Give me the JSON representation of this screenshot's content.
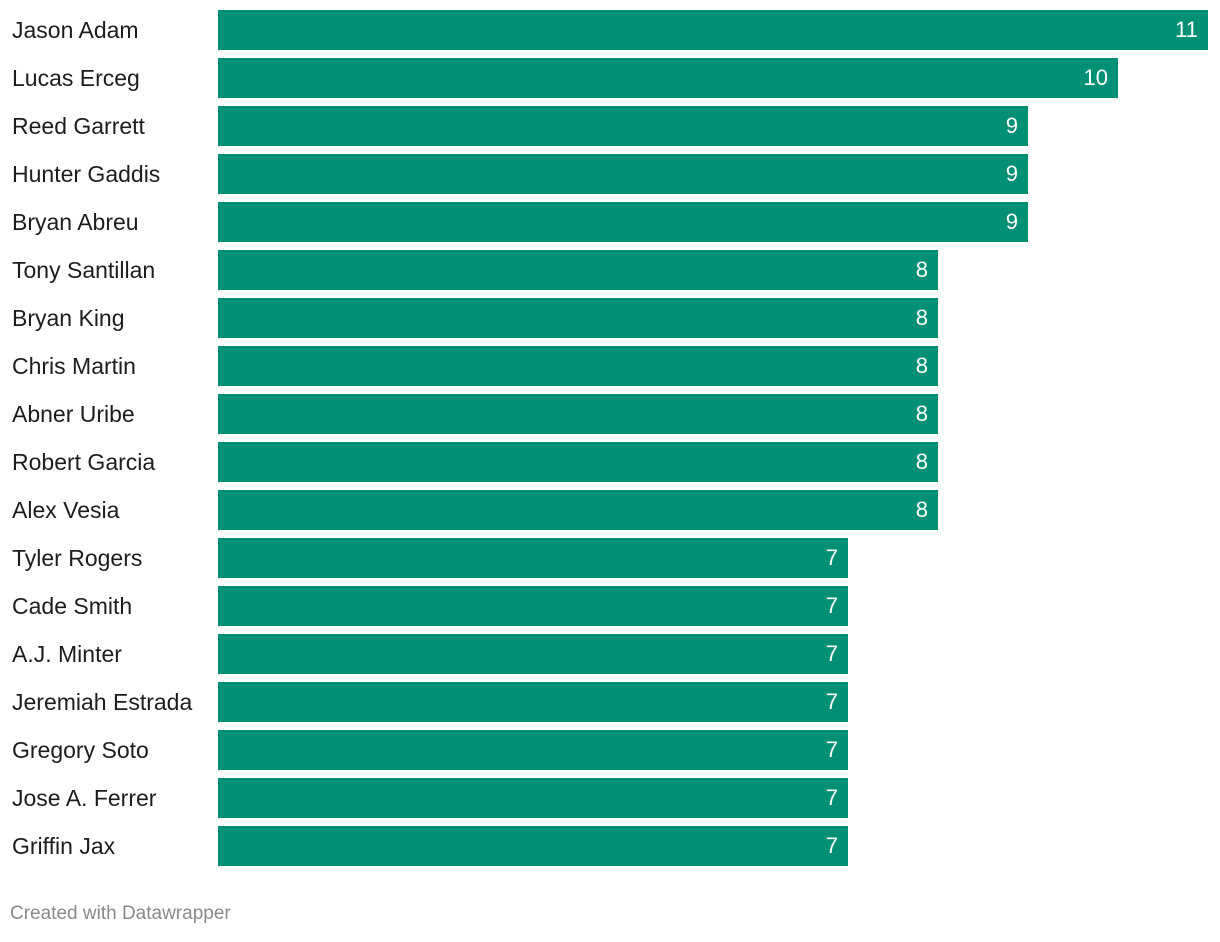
{
  "colors": {
    "bar": "#009076"
  },
  "chart_data": {
    "type": "bar",
    "orientation": "horizontal",
    "title": "",
    "xlabel": "",
    "ylabel": "",
    "xlim": [
      0,
      11
    ],
    "categories": [
      "Jason Adam",
      "Lucas Erceg",
      "Reed Garrett",
      "Hunter Gaddis",
      "Bryan Abreu",
      "Tony Santillan",
      "Bryan King",
      "Chris Martin",
      "Abner Uribe",
      "Robert Garcia",
      "Alex Vesia",
      "Tyler Rogers",
      "Cade Smith",
      "A.J. Minter",
      "Jeremiah Estrada",
      "Gregory Soto",
      "Jose A. Ferrer",
      "Griffin Jax"
    ],
    "values": [
      11,
      10,
      9,
      9,
      9,
      8,
      8,
      8,
      8,
      8,
      8,
      7,
      7,
      7,
      7,
      7,
      7,
      7
    ]
  },
  "footer": {
    "credit": "Created with Datawrapper"
  }
}
